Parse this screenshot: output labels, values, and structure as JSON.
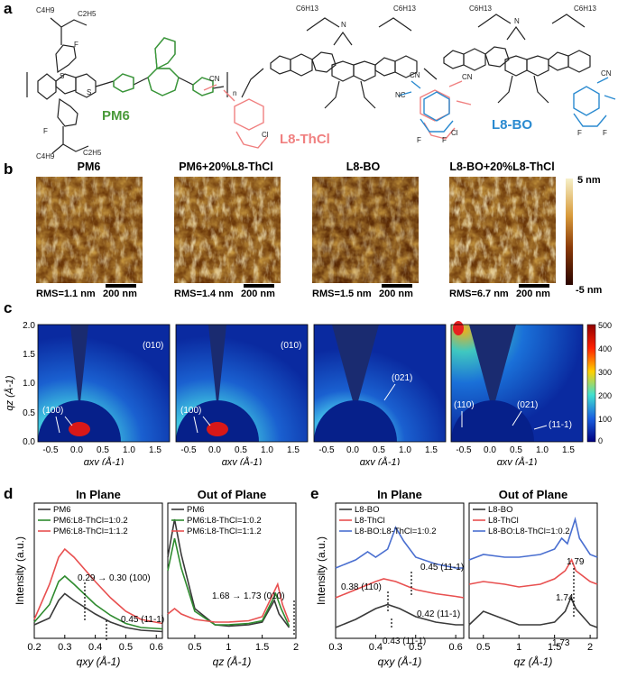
{
  "panels": {
    "a": "a",
    "b": "b",
    "c": "c",
    "d": "d",
    "e": "e"
  },
  "molecules": {
    "pm6": {
      "name": "PM6",
      "color": "#4a9a3a",
      "subscript": "n",
      "F": "F",
      "S": "S",
      "O": "O",
      "butyl": "C4H9",
      "ethyl": "C2H5"
    },
    "thcl": {
      "name": "L8-ThCl",
      "color": "#f08080",
      "Cl": "Cl",
      "CN": "CN",
      "N": "N",
      "hexyl": "C6H13",
      "undecyl": "C4H9"
    },
    "bo": {
      "name": "L8-BO",
      "color": "#2a8ad0",
      "F": "F",
      "CN": "CN",
      "NC": "NC",
      "N": "N",
      "hexyl": "C6H13",
      "butyl": "C4H9",
      "ethyl": "C2H5"
    }
  },
  "afm": {
    "titles": [
      "PM6",
      "PM6+20%L8-ThCl",
      "L8-BO",
      "L8-BO+20%L8-ThCl"
    ],
    "rms": [
      "RMS=1.1 nm",
      "RMS=1.4 nm",
      "RMS=1.5 nm",
      "RMS=6.7 nm"
    ],
    "scalebar": "200 nm",
    "colorbar": {
      "max": "5 nm",
      "min": "-5 nm"
    }
  },
  "giwaxs": {
    "ylabel": "qz (Å-1)",
    "xlabel": "qxy (Å-1)",
    "xticks": [
      "-0.5",
      "0.0",
      "0.5",
      "1.0",
      "1.5"
    ],
    "yticks": [
      "0.0",
      "0.5",
      "1.0",
      "1.5",
      "2.0"
    ],
    "colorbar_ticks": [
      "500",
      "400",
      "300",
      "200",
      "100",
      "0"
    ],
    "labels": [
      [
        "(100)",
        "(010)"
      ],
      [
        "(100)",
        "(010)"
      ],
      [
        "(021)"
      ],
      [
        "(110)",
        "(021)",
        "(11-1)"
      ]
    ]
  },
  "chart_data": [
    {
      "type": "line",
      "title": "In Plane",
      "xlabel": "qxy (Å-1)",
      "ylabel": "Intensity (a.u.)",
      "xlim": [
        0.2,
        0.62
      ],
      "xticks": [
        0.2,
        0.3,
        0.4,
        0.5,
        0.6
      ],
      "series": [
        {
          "name": "PM6",
          "color": "#3a3a3a",
          "points": [
            [
              0.2,
              0.1
            ],
            [
              0.25,
              0.15
            ],
            [
              0.28,
              0.28
            ],
            [
              0.3,
              0.33
            ],
            [
              0.33,
              0.28
            ],
            [
              0.4,
              0.18
            ],
            [
              0.45,
              0.12
            ],
            [
              0.5,
              0.08
            ],
            [
              0.55,
              0.06
            ],
            [
              0.62,
              0.05
            ]
          ]
        },
        {
          "name": "PM6:L8-ThCl=1:0.2",
          "color": "#2e8b2e",
          "points": [
            [
              0.2,
              0.12
            ],
            [
              0.25,
              0.25
            ],
            [
              0.28,
              0.42
            ],
            [
              0.3,
              0.46
            ],
            [
              0.33,
              0.4
            ],
            [
              0.4,
              0.25
            ],
            [
              0.45,
              0.17
            ],
            [
              0.5,
              0.11
            ],
            [
              0.55,
              0.08
            ],
            [
              0.62,
              0.07
            ]
          ]
        },
        {
          "name": "PM6:L8-ThCl=1:1.2",
          "color": "#e85050",
          "points": [
            [
              0.2,
              0.14
            ],
            [
              0.25,
              0.4
            ],
            [
              0.28,
              0.6
            ],
            [
              0.3,
              0.66
            ],
            [
              0.33,
              0.6
            ],
            [
              0.4,
              0.42
            ],
            [
              0.45,
              0.3
            ],
            [
              0.5,
              0.2
            ],
            [
              0.55,
              0.14
            ],
            [
              0.62,
              0.11
            ]
          ]
        }
      ],
      "annotations": [
        "0.29 → 0.30 (100)",
        "0.45 (11-1)"
      ]
    },
    {
      "type": "line",
      "title": "Out of Plane",
      "xlabel": "qz (Å-1)",
      "xlim": [
        0.1,
        2.0
      ],
      "xticks": [
        0.5,
        1,
        1.5,
        2
      ],
      "series": [
        {
          "name": "PM6",
          "color": "#3a3a3a",
          "points": [
            [
              0.1,
              0.6
            ],
            [
              0.2,
              0.88
            ],
            [
              0.3,
              0.62
            ],
            [
              0.5,
              0.22
            ],
            [
              0.8,
              0.1
            ],
            [
              1.0,
              0.09
            ],
            [
              1.3,
              0.1
            ],
            [
              1.5,
              0.12
            ],
            [
              1.68,
              0.28
            ],
            [
              1.75,
              0.18
            ],
            [
              1.9,
              0.08
            ]
          ]
        },
        {
          "name": "PM6:L8-ThCl=1:0.2",
          "color": "#2e8b2e",
          "points": [
            [
              0.1,
              0.5
            ],
            [
              0.2,
              0.74
            ],
            [
              0.3,
              0.52
            ],
            [
              0.5,
              0.2
            ],
            [
              0.8,
              0.1
            ],
            [
              1.0,
              0.1
            ],
            [
              1.3,
              0.11
            ],
            [
              1.5,
              0.13
            ],
            [
              1.7,
              0.33
            ],
            [
              1.78,
              0.22
            ],
            [
              1.9,
              0.09
            ]
          ]
        },
        {
          "name": "PM6:L8-ThCl=1:1.2",
          "color": "#e85050",
          "points": [
            [
              0.1,
              0.18
            ],
            [
              0.2,
              0.22
            ],
            [
              0.3,
              0.18
            ],
            [
              0.5,
              0.14
            ],
            [
              0.8,
              0.12
            ],
            [
              1.0,
              0.12
            ],
            [
              1.3,
              0.13
            ],
            [
              1.5,
              0.16
            ],
            [
              1.73,
              0.4
            ],
            [
              1.8,
              0.25
            ],
            [
              1.9,
              0.12
            ]
          ]
        }
      ],
      "annotations": [
        "1.68 → 1.73 (010)"
      ]
    },
    {
      "type": "line",
      "title": "In Plane",
      "xlabel": "qxy (Å-1)",
      "ylabel": "Intensity (a.u.)",
      "xlim": [
        0.3,
        0.62
      ],
      "xticks": [
        0.3,
        0.4,
        0.5,
        0.6
      ],
      "series": [
        {
          "name": "L8-BO",
          "color": "#3a3a3a",
          "points": [
            [
              0.3,
              0.08
            ],
            [
              0.35,
              0.14
            ],
            [
              0.4,
              0.22
            ],
            [
              0.43,
              0.25
            ],
            [
              0.46,
              0.22
            ],
            [
              0.5,
              0.16
            ],
            [
              0.55,
              0.12
            ],
            [
              0.6,
              0.1
            ],
            [
              0.62,
              0.1
            ]
          ]
        },
        {
          "name": "L8-ThCl",
          "color": "#e85050",
          "points": [
            [
              0.3,
              0.3
            ],
            [
              0.35,
              0.36
            ],
            [
              0.4,
              0.42
            ],
            [
              0.42,
              0.44
            ],
            [
              0.45,
              0.42
            ],
            [
              0.5,
              0.36
            ],
            [
              0.55,
              0.33
            ],
            [
              0.6,
              0.31
            ],
            [
              0.62,
              0.3
            ]
          ]
        },
        {
          "name": "L8-BO:L8-ThCl=1:0.2",
          "color": "#4a6fd0",
          "points": [
            [
              0.3,
              0.52
            ],
            [
              0.35,
              0.58
            ],
            [
              0.38,
              0.64
            ],
            [
              0.4,
              0.6
            ],
            [
              0.43,
              0.66
            ],
            [
              0.45,
              0.82
            ],
            [
              0.47,
              0.72
            ],
            [
              0.5,
              0.6
            ],
            [
              0.55,
              0.55
            ],
            [
              0.6,
              0.52
            ],
            [
              0.62,
              0.52
            ]
          ]
        }
      ],
      "annotations": [
        "0.38 (110)",
        "0.45 (11-1)",
        "0.42 (11-1)",
        "0.43 (11-1)"
      ]
    },
    {
      "type": "line",
      "title": "Out of Plane",
      "xlabel": "qz (Å-1)",
      "xlim": [
        0.3,
        2.1
      ],
      "xticks": [
        0.5,
        1,
        1.5,
        2
      ],
      "series": [
        {
          "name": "L8-BO",
          "color": "#3a3a3a",
          "points": [
            [
              0.3,
              0.1
            ],
            [
              0.5,
              0.2
            ],
            [
              0.7,
              0.16
            ],
            [
              1.0,
              0.1
            ],
            [
              1.3,
              0.1
            ],
            [
              1.5,
              0.12
            ],
            [
              1.65,
              0.2
            ],
            [
              1.73,
              0.3
            ],
            [
              1.8,
              0.22
            ],
            [
              2.0,
              0.1
            ],
            [
              2.1,
              0.08
            ]
          ]
        },
        {
          "name": "L8-ThCl",
          "color": "#e85050",
          "points": [
            [
              0.3,
              0.4
            ],
            [
              0.5,
              0.42
            ],
            [
              0.8,
              0.4
            ],
            [
              1.0,
              0.38
            ],
            [
              1.3,
              0.4
            ],
            [
              1.5,
              0.44
            ],
            [
              1.65,
              0.5
            ],
            [
              1.74,
              0.58
            ],
            [
              1.8,
              0.5
            ],
            [
              2.0,
              0.42
            ],
            [
              2.1,
              0.4
            ]
          ]
        },
        {
          "name": "L8-BO:L8-ThCl=1:0.2",
          "color": "#4a6fd0",
          "points": [
            [
              0.3,
              0.58
            ],
            [
              0.5,
              0.62
            ],
            [
              0.8,
              0.6
            ],
            [
              1.0,
              0.6
            ],
            [
              1.3,
              0.62
            ],
            [
              1.5,
              0.66
            ],
            [
              1.6,
              0.74
            ],
            [
              1.68,
              0.7
            ],
            [
              1.79,
              0.88
            ],
            [
              1.85,
              0.74
            ],
            [
              2.0,
              0.62
            ],
            [
              2.1,
              0.6
            ]
          ]
        }
      ],
      "annotations": [
        "1.79",
        "1.74",
        "1.73"
      ]
    }
  ]
}
